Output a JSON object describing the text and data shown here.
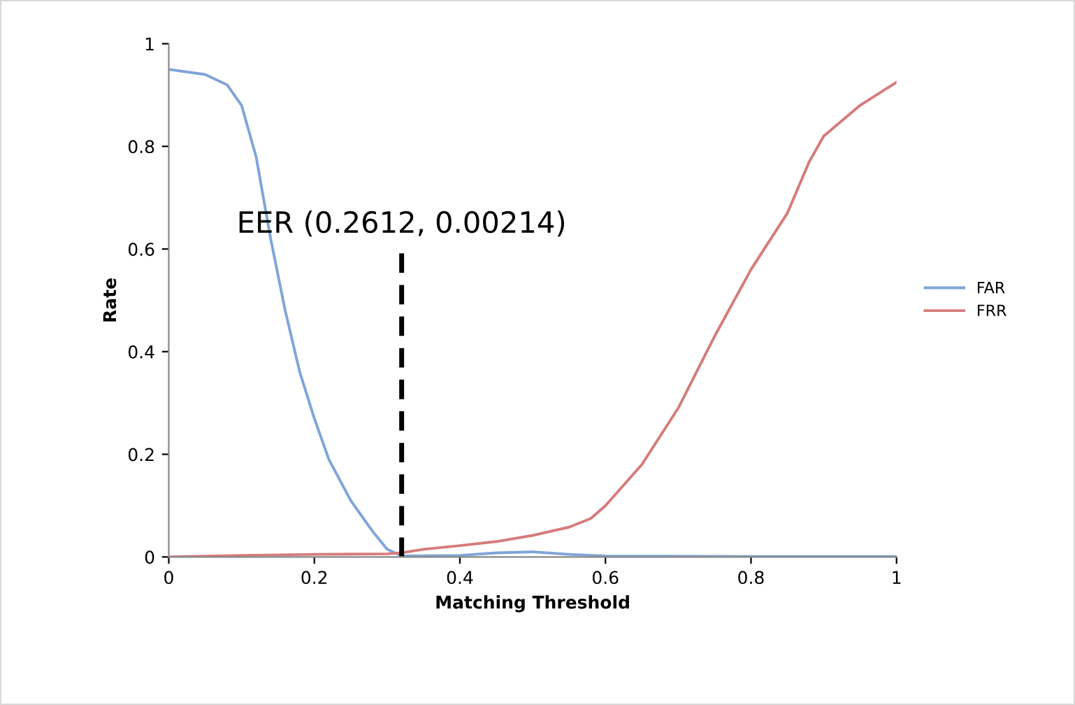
{
  "chart_data": {
    "type": "line",
    "xlabel": "Matching Threshold",
    "ylabel": "Rate",
    "xlim": [
      0,
      1
    ],
    "ylim": [
      0,
      1
    ],
    "xticks": [
      0,
      0.2,
      0.4,
      0.6,
      0.8,
      1
    ],
    "yticks": [
      0,
      0.2,
      0.4,
      0.6,
      0.8,
      1
    ],
    "grid": false,
    "legend": "right",
    "marker": "none",
    "line_style": "solid",
    "series": [
      {
        "name": "FAR",
        "color": "#7fa5d8",
        "x": [
          0,
          0.05,
          0.08,
          0.1,
          0.12,
          0.14,
          0.16,
          0.18,
          0.2,
          0.22,
          0.25,
          0.28,
          0.3,
          0.32,
          0.4,
          0.45,
          0.5,
          0.55,
          0.6,
          0.8,
          1
        ],
        "values": [
          0.95,
          0.94,
          0.92,
          0.88,
          0.78,
          0.62,
          0.48,
          0.36,
          0.27,
          0.19,
          0.11,
          0.05,
          0.015,
          0.002,
          0.003,
          0.008,
          0.01,
          0.005,
          0.002,
          0.001,
          0.001
        ]
      },
      {
        "name": "FRR",
        "color": "#d67b7b",
        "x": [
          0,
          0.1,
          0.2,
          0.3,
          0.32,
          0.35,
          0.4,
          0.45,
          0.5,
          0.55,
          0.58,
          0.6,
          0.65,
          0.7,
          0.75,
          0.8,
          0.85,
          0.88,
          0.9,
          0.95,
          1
        ],
        "values": [
          0,
          0.003,
          0.005,
          0.006,
          0.008,
          0.015,
          0.022,
          0.03,
          0.042,
          0.058,
          0.075,
          0.1,
          0.18,
          0.29,
          0.43,
          0.56,
          0.67,
          0.77,
          0.82,
          0.88,
          0.925
        ]
      }
    ],
    "ref_lines": [
      {
        "axis": "x",
        "value": 0.32,
        "color": "#000000",
        "line_style": "dashed"
      }
    ],
    "annotations": [
      {
        "text": "EER (0.2612, 0.00214)",
        "x": 0.32,
        "y": 0.6
      }
    ]
  }
}
